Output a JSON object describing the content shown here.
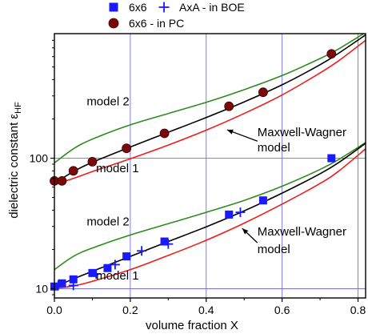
{
  "chart_data": {
    "type": "scatter",
    "title": "",
    "xlabel": "volume fraction X",
    "ylabel": "dielectric constant ε",
    "ylabel_subscript": "HF",
    "xlim": [
      0,
      0.82
    ],
    "ylim": [
      8.5,
      900
    ],
    "yscale": "log",
    "grid": true,
    "x_ticks": [
      0.0,
      0.2,
      0.4,
      0.6,
      0.8
    ],
    "x_tick_labels": [
      "0.0",
      "0.2",
      "0.4",
      "0.6",
      "0.8"
    ],
    "y_ticks": [
      10,
      100
    ],
    "y_tick_labels": [
      "10",
      "100"
    ],
    "legend": {
      "placement": "top",
      "entries": [
        {
          "label": "6x6",
          "marker": "square",
          "color": "#1a1aff"
        },
        {
          "label": "AxA  - in BOE",
          "marker": "plus",
          "color": "#1a1aff"
        },
        {
          "label": "6x6  -  in PC",
          "marker": "circle",
          "color": "#7a0a0a"
        }
      ]
    },
    "series": [
      {
        "name": "6x6",
        "marker": "square",
        "color": "#1a1aff",
        "x": [
          0.0,
          0.02,
          0.05,
          0.1,
          0.14,
          0.19,
          0.29,
          0.46,
          0.55,
          0.73
        ],
        "y": [
          10.4,
          11.0,
          11.8,
          13.2,
          14.4,
          17.7,
          23.0,
          37.0,
          47.5,
          100.0
        ]
      },
      {
        "name": "AxA  - in BOE",
        "marker": "plus",
        "color": "#1a1aff",
        "x": [
          0.01,
          0.05,
          0.11,
          0.16,
          0.23,
          0.3,
          0.49
        ],
        "y": [
          10.6,
          10.6,
          13.0,
          15.3,
          19.5,
          22.0,
          38.5
        ]
      },
      {
        "name": "6x6  -  in PC",
        "marker": "circle",
        "color": "#7a0a0a",
        "x": [
          0.0,
          0.02,
          0.05,
          0.1,
          0.19,
          0.29,
          0.46,
          0.55,
          0.73
        ],
        "y": [
          67.0,
          67.0,
          80.0,
          94.0,
          119.0,
          155.0,
          250.0,
          320.0,
          630.0
        ]
      }
    ],
    "curves": [
      {
        "group": "PC",
        "model": "model 2",
        "color": "#2e8b1e",
        "x": [
          0.0,
          0.05,
          0.1,
          0.2,
          0.3,
          0.4,
          0.5,
          0.6,
          0.7,
          0.75,
          0.82
        ],
        "y": [
          92,
          118,
          140,
          180,
          220,
          268,
          335,
          430,
          580,
          690,
          920
        ]
      },
      {
        "group": "PC",
        "model": "Maxwell-Wagner",
        "color": "#000000",
        "x": [
          0.0,
          0.05,
          0.1,
          0.2,
          0.3,
          0.4,
          0.5,
          0.6,
          0.7,
          0.75,
          0.82
        ],
        "y": [
          64,
          79,
          93,
          122,
          158,
          205,
          270,
          365,
          520,
          640,
          880
        ]
      },
      {
        "group": "PC",
        "model": "model 1",
        "color": "#ee1c1c",
        "x": [
          0.0,
          0.05,
          0.1,
          0.2,
          0.3,
          0.4,
          0.5,
          0.6,
          0.7,
          0.75,
          0.82
        ],
        "y": [
          63,
          70,
          79,
          99,
          126,
          164,
          220,
          305,
          450,
          560,
          800
        ]
      },
      {
        "group": "BOE",
        "model": "model 2",
        "color": "#2e8b1e",
        "x": [
          0.0,
          0.05,
          0.1,
          0.2,
          0.3,
          0.4,
          0.5,
          0.6,
          0.7,
          0.75,
          0.82
        ],
        "y": [
          14,
          17.7,
          20.5,
          25.8,
          31.5,
          38.5,
          47.5,
          61,
          82,
          98,
          132
        ]
      },
      {
        "group": "BOE",
        "model": "Maxwell-Wagner",
        "color": "#000000",
        "x": [
          0.0,
          0.05,
          0.1,
          0.2,
          0.3,
          0.4,
          0.5,
          0.6,
          0.7,
          0.75,
          0.82
        ],
        "y": [
          10.3,
          11.9,
          13.6,
          17.7,
          23.0,
          29.8,
          39.5,
          54,
          76,
          93,
          130
        ]
      },
      {
        "group": "BOE",
        "model": "model 1",
        "color": "#ee1c1c",
        "x": [
          0.0,
          0.05,
          0.1,
          0.2,
          0.3,
          0.4,
          0.5,
          0.6,
          0.7,
          0.75,
          0.82
        ],
        "y": [
          10.1,
          10.5,
          11.4,
          14.0,
          18.0,
          23.5,
          31.8,
          44.5,
          64,
          80,
          118
        ]
      }
    ],
    "annotations": [
      {
        "text": "model 2",
        "x": 0.085,
        "y": 255
      },
      {
        "text": "Maxwell-Wagner",
        "x": 0.535,
        "y": 148
      },
      {
        "text": "model",
        "x": 0.535,
        "y": 113
      },
      {
        "text": "model 1",
        "x": 0.11,
        "y": 78
      },
      {
        "text": "model 2",
        "x": 0.085,
        "y": 30.5
      },
      {
        "text": "Maxwell-Wagner",
        "x": 0.535,
        "y": 25.5
      },
      {
        "text": "model",
        "x": 0.535,
        "y": 18.7
      },
      {
        "text": "model 1",
        "x": 0.11,
        "y": 11.8
      }
    ],
    "arrows": [
      {
        "from": [
          0.535,
          135
        ],
        "to": [
          0.455,
          165
        ]
      },
      {
        "from": [
          0.535,
          22.5
        ],
        "to": [
          0.495,
          29.0
        ]
      }
    ]
  }
}
